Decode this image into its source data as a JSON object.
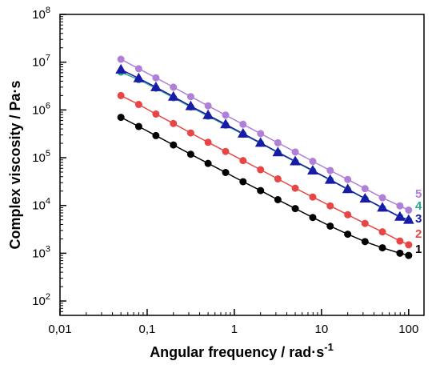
{
  "chart_data": {
    "type": "line",
    "xlabel": "Angular frequency / rad·s",
    "xlabel_sup": "-1",
    "ylabel": "Complex viscosity / Pa·s",
    "xscale": "log",
    "yscale": "log",
    "xlim": [
      0.01,
      150
    ],
    "ylim": [
      50,
      100000000
    ],
    "grid": false,
    "x_ticks": [
      {
        "value": 0.01,
        "label": "0,01"
      },
      {
        "value": 0.1,
        "label": "0,1"
      },
      {
        "value": 1,
        "label": "1"
      },
      {
        "value": 10,
        "label": "10"
      },
      {
        "value": 100,
        "label": "100"
      }
    ],
    "y_ticks": [
      {
        "value": 100,
        "base": "10",
        "exp": "2"
      },
      {
        "value": 1000,
        "base": "10",
        "exp": "3"
      },
      {
        "value": 10000,
        "base": "10",
        "exp": "4"
      },
      {
        "value": 100000,
        "base": "10",
        "exp": "5"
      },
      {
        "value": 1000000,
        "base": "10",
        "exp": "6"
      },
      {
        "value": 10000000,
        "base": "10",
        "exp": "7"
      },
      {
        "value": 100000000,
        "base": "10",
        "exp": "8"
      }
    ],
    "x": [
      0.05,
      0.08,
      0.126,
      0.2,
      0.316,
      0.5,
      0.794,
      1.259,
      2.0,
      3.16,
      5.0,
      7.94,
      12.59,
      20.0,
      31.6,
      50.0,
      79.4,
      100.0
    ],
    "series": [
      {
        "label": "1",
        "color": "#000000",
        "marker": "circle",
        "values": [
          700000,
          450000,
          290000,
          185000,
          118000,
          76000,
          49000,
          31500,
          20500,
          13200,
          8600,
          5600,
          3700,
          2500,
          1750,
          1300,
          1000,
          900
        ]
      },
      {
        "label": "2",
        "color": "#e84545",
        "marker": "circle",
        "values": [
          2000000,
          1300000,
          820000,
          520000,
          330000,
          210000,
          135000,
          87000,
          56000,
          36000,
          23000,
          15000,
          9800,
          6400,
          4200,
          2800,
          1800,
          1500
        ]
      },
      {
        "label": "3",
        "color": "#1a1aa8",
        "marker": "triangle",
        "values": [
          7000000,
          4600000,
          3000000,
          1900000,
          1200000,
          780000,
          500000,
          320000,
          205000,
          130000,
          84000,
          54000,
          34500,
          22000,
          14000,
          9000,
          5800,
          5000
        ]
      },
      {
        "label": "4",
        "color": "#2ea88a",
        "marker": "circle",
        "values": [
          6200000,
          4300000,
          2850000,
          1800000,
          1150000,
          740000,
          480000,
          310000,
          200000,
          128000,
          82000,
          53000,
          34000,
          21500,
          13800,
          8800,
          5700,
          4900
        ]
      },
      {
        "label": "5",
        "color": "#b07fd8",
        "marker": "circle",
        "values": [
          11500000,
          7300000,
          4700000,
          3000000,
          1900000,
          1220000,
          780000,
          500000,
          320000,
          205000,
          132000,
          84000,
          54000,
          35000,
          22500,
          14500,
          9800,
          8000
        ]
      }
    ]
  }
}
